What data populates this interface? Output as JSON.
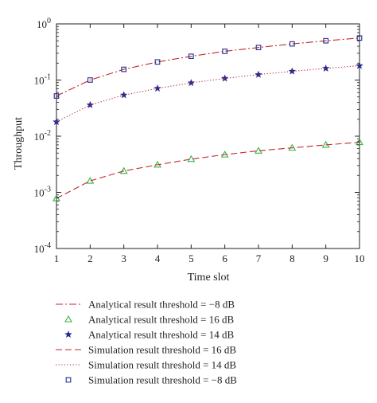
{
  "chart_data": {
    "type": "line",
    "xlabel": "Time slot",
    "ylabel": "Throughput",
    "xlim": [
      1,
      10
    ],
    "ylim": [
      0.0001,
      1
    ],
    "yscale": "log",
    "grid": false,
    "legend_position": "below",
    "x": [
      1,
      2,
      3,
      4,
      5,
      6,
      7,
      8,
      9,
      10
    ],
    "x_tick_labels": [
      "1",
      "2",
      "3",
      "4",
      "5",
      "6",
      "7",
      "8",
      "9",
      "10"
    ],
    "y_tick_labels": [
      {
        "base": "10",
        "exp": "-4",
        "value": 0.0001
      },
      {
        "base": "10",
        "exp": "-3",
        "value": 0.001
      },
      {
        "base": "10",
        "exp": "-2",
        "value": 0.01
      },
      {
        "base": "10",
        "exp": "-1",
        "value": 0.1
      },
      {
        "base": "10",
        "exp": "0",
        "value": 1
      }
    ],
    "series": [
      {
        "name": "Analytical result threshold = −8 dB",
        "color": "#c0272d",
        "line": "dashdot",
        "marker": "none",
        "values": [
          0.052,
          0.1,
          0.155,
          0.21,
          0.265,
          0.325,
          0.38,
          0.44,
          0.5,
          0.56
        ]
      },
      {
        "name": "Analytical result threshold = 16 dB",
        "color": "#39b54a",
        "line": "none",
        "marker": "triangle",
        "values": [
          0.00078,
          0.0016,
          0.0024,
          0.0031,
          0.0039,
          0.0047,
          0.0055,
          0.0062,
          0.007,
          0.0078
        ]
      },
      {
        "name": "Analytical result threshold = 14 dB",
        "color": "#262a8f",
        "line": "none",
        "marker": "star",
        "values": [
          0.018,
          0.036,
          0.054,
          0.071,
          0.089,
          0.107,
          0.125,
          0.143,
          0.161,
          0.18
        ]
      },
      {
        "name": "Simulation result threshold = 16 dB",
        "color": "#c0272d",
        "line": "dashed",
        "marker": "none",
        "values": [
          0.00078,
          0.0016,
          0.0024,
          0.0031,
          0.0039,
          0.0047,
          0.0055,
          0.0062,
          0.007,
          0.0078
        ]
      },
      {
        "name": "Simulation result threshold = 14 dB",
        "color": "#c0272d",
        "line": "dotted",
        "marker": "none",
        "values": [
          0.018,
          0.036,
          0.054,
          0.071,
          0.089,
          0.107,
          0.125,
          0.143,
          0.161,
          0.18
        ]
      },
      {
        "name": "Simulation result threshold = −8 dB",
        "color": "#262a8f",
        "line": "none",
        "marker": "square",
        "values": [
          0.052,
          0.1,
          0.155,
          0.21,
          0.265,
          0.325,
          0.38,
          0.44,
          0.5,
          0.56
        ]
      }
    ]
  }
}
